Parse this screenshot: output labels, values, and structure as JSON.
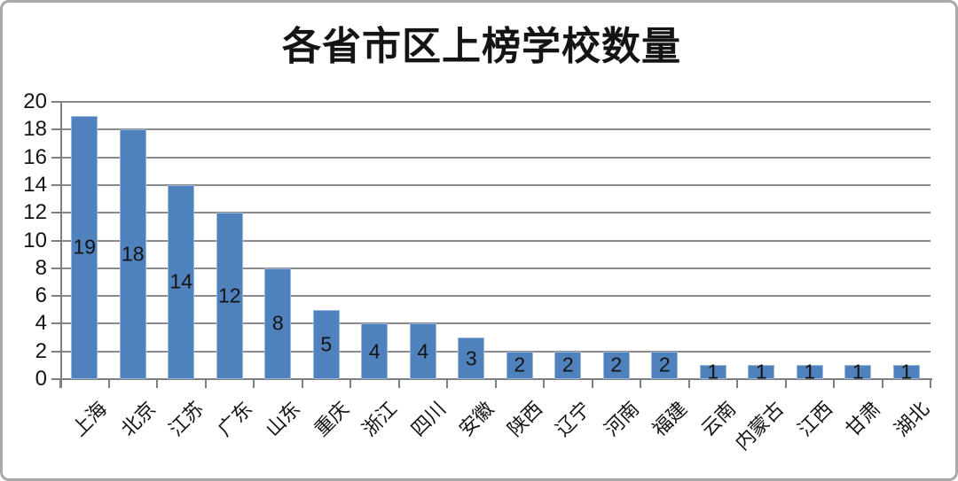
{
  "chart_data": {
    "type": "bar",
    "title": "各省市区上榜学校数量",
    "categories": [
      "上海",
      "北京",
      "江苏",
      "广东",
      "山东",
      "重庆",
      "浙江",
      "四川",
      "安徽",
      "陕西",
      "辽宁",
      "河南",
      "福建",
      "云南",
      "内蒙古",
      "江西",
      "甘肃",
      "湖北"
    ],
    "values": [
      19,
      18,
      14,
      12,
      8,
      5,
      4,
      4,
      3,
      2,
      2,
      2,
      2,
      1,
      1,
      1,
      1,
      1
    ],
    "data_labels": [
      "19",
      "18",
      "14",
      "12",
      "8",
      "5",
      "4",
      "4",
      "3",
      "2",
      "2",
      "2",
      "2",
      "1",
      "1",
      "1",
      "1",
      "1"
    ],
    "xlabel": "",
    "ylabel": "",
    "ylim": [
      0,
      20
    ],
    "yticks": [
      0,
      2,
      4,
      6,
      8,
      10,
      12,
      14,
      16,
      18,
      20
    ],
    "grid": true,
    "legend_position": "none",
    "bar_color": "#4f81bd",
    "bar_border_color": "#9ab6dc",
    "gridline_color": "#8a8a8a",
    "axis_color": "#7f7f7f",
    "text_color": "#141414",
    "category_label_rotation_deg": 45
  }
}
